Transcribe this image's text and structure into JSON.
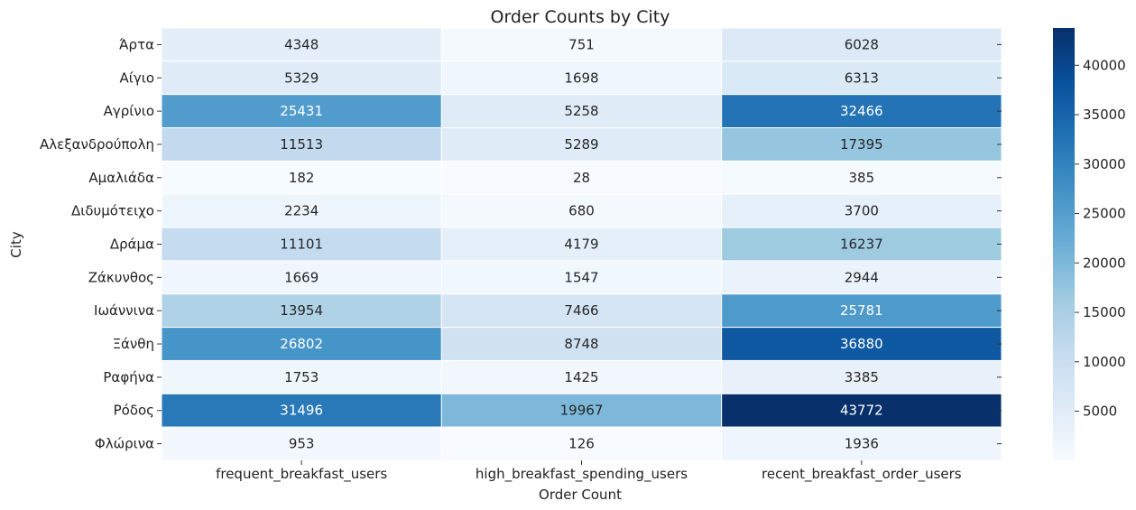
{
  "chart_data": {
    "type": "heatmap",
    "title": "Order Counts by City",
    "xlabel": "Order Count",
    "ylabel": "City",
    "columns": [
      "frequent_breakfast_users",
      "high_breakfast_spending_users",
      "recent_breakfast_order_users"
    ],
    "rows": [
      {
        "city": "Άρτα",
        "values": [
          4348,
          751,
          6028
        ],
        "labels": [
          "4348",
          "751",
          "6028"
        ]
      },
      {
        "city": "Αίγιο",
        "values": [
          5329,
          1698,
          6313
        ],
        "labels": [
          "5329",
          "1698",
          "6313"
        ]
      },
      {
        "city": "Αγρίνιο",
        "values": [
          25431,
          5258,
          32466
        ],
        "labels": [
          "25431",
          "5258",
          "32466"
        ]
      },
      {
        "city": "Αλεξανδρούπολη",
        "values": [
          11513,
          5289,
          17395
        ],
        "labels": [
          "11513",
          "5289",
          "17395"
        ]
      },
      {
        "city": "Αμαλιάδα",
        "values": [
          182,
          28,
          385
        ],
        "labels": [
          "182",
          "28",
          "385"
        ]
      },
      {
        "city": "Διδυμότειχο",
        "values": [
          2234,
          680,
          3700
        ],
        "labels": [
          "2234",
          "680",
          "3700"
        ]
      },
      {
        "city": "Δράμα",
        "values": [
          11101,
          4179,
          16237
        ],
        "labels": [
          "11101",
          "4179",
          "16237"
        ]
      },
      {
        "city": "Ζάκυνθος",
        "values": [
          1669,
          1547,
          2944
        ],
        "labels": [
          "1669",
          "1547",
          "2944"
        ]
      },
      {
        "city": "Ιωάννινα",
        "values": [
          13954,
          7466,
          25781
        ],
        "labels": [
          "13954",
          "7466",
          "25781"
        ]
      },
      {
        "city": "Ξάνθη",
        "values": [
          26802,
          8748,
          36880
        ],
        "labels": [
          "26802",
          "8748",
          "36880"
        ]
      },
      {
        "city": "Ραφήνα",
        "values": [
          1753,
          1425,
          3385
        ],
        "labels": [
          "1753",
          "1425",
          "3385"
        ]
      },
      {
        "city": "Ρόδος",
        "values": [
          31496,
          19967,
          43772
        ],
        "labels": [
          "31496",
          "19967",
          "43772"
        ]
      },
      {
        "city": "Φλώρινα",
        "values": [
          953,
          126,
          1936
        ],
        "labels": [
          "953",
          "126",
          "1936"
        ]
      }
    ],
    "color_scale": {
      "colormap": "Blues",
      "range": [
        28,
        43772
      ],
      "ticks": [
        5000,
        10000,
        15000,
        20000,
        25000,
        30000,
        35000,
        40000
      ],
      "tick_labels": [
        "5000",
        "10000",
        "15000",
        "20000",
        "25000",
        "30000",
        "35000",
        "40000"
      ]
    }
  }
}
